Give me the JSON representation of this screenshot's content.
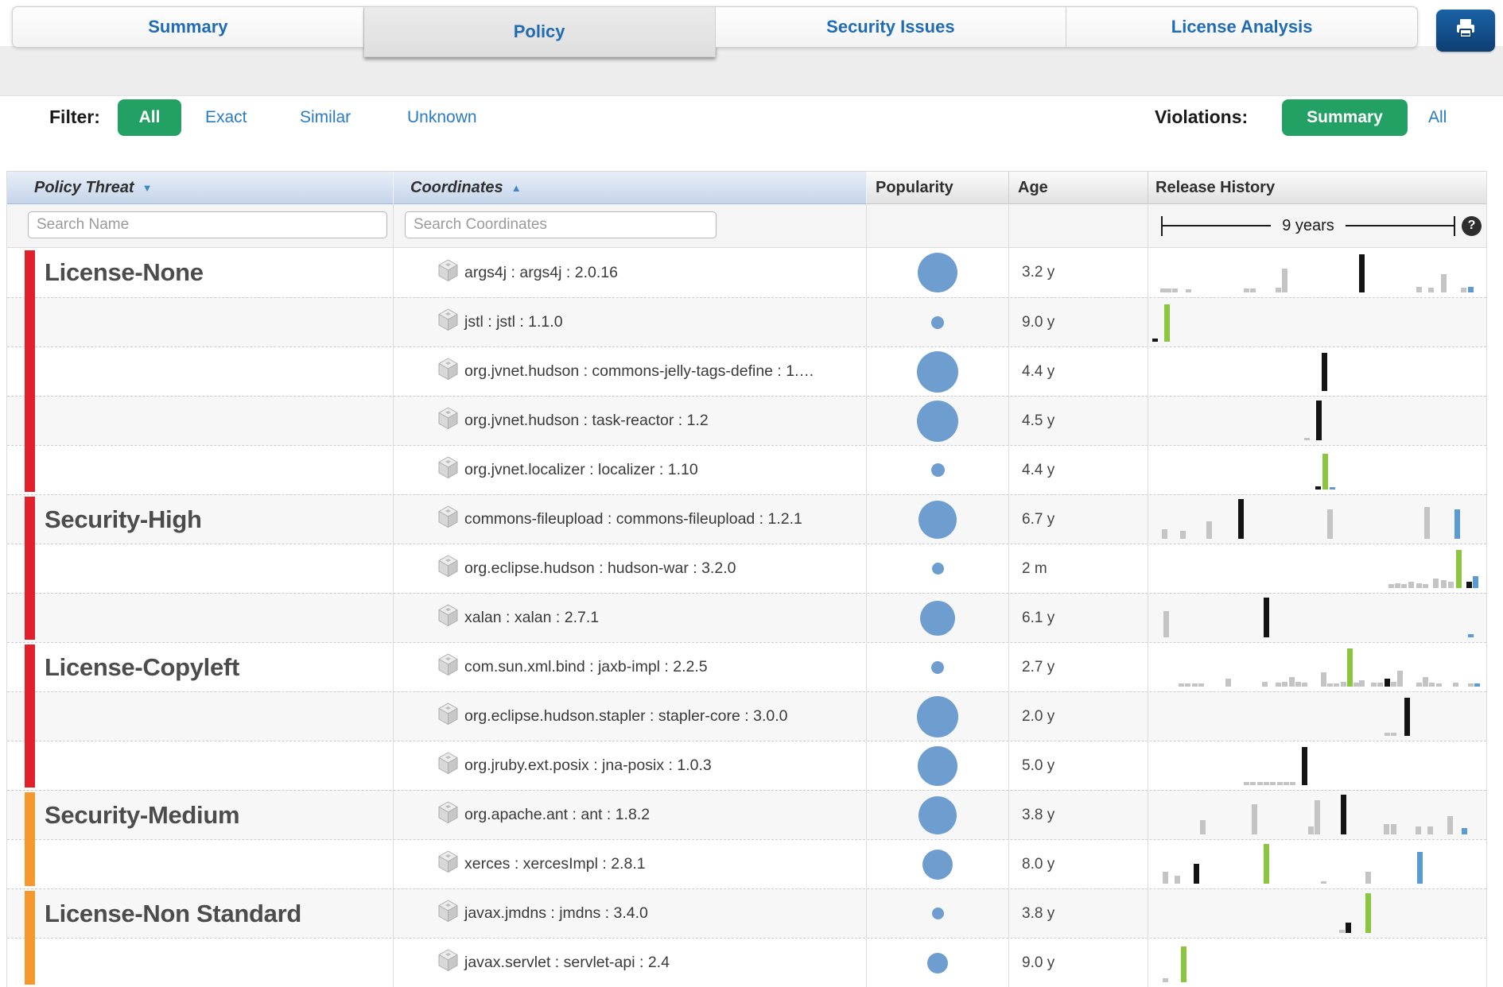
{
  "header": {
    "tabs": [
      {
        "label": "Summary",
        "active": false
      },
      {
        "label": "Policy",
        "active": true
      },
      {
        "label": "Security Issues",
        "active": false
      },
      {
        "label": "License Analysis",
        "active": false
      }
    ]
  },
  "filters": {
    "filter_label": "Filter:",
    "filter_all": "All",
    "filter_exact": "Exact",
    "filter_similar": "Similar",
    "filter_unknown": "Unknown",
    "violations_label": "Violations:",
    "violations_summary": "Summary",
    "violations_all": "All"
  },
  "table": {
    "columns": [
      {
        "label": "Policy Threat",
        "sort": "desc"
      },
      {
        "label": "Coordinates",
        "sort": "asc"
      },
      {
        "label": "Popularity",
        "sort": ""
      },
      {
        "label": "Age",
        "sort": ""
      },
      {
        "label": "Release History",
        "sort": ""
      }
    ],
    "sort_desc_glyph": "▼",
    "sort_asc_glyph": "▲",
    "search_name_placeholder": "Search Name",
    "search_coordinates_placeholder": "Search Coordinates",
    "release_scale_label": "9 years",
    "help_glyph": "?",
    "colors": {
      "threat_red": "#e2202c",
      "threat_orange": "#f5992d",
      "bubble_blue": "#6d9ecf",
      "accent_green": "#23a164",
      "link_blue": "#2b7bbf"
    },
    "bar_colors": {
      "g": "#c4c4c4",
      "k": "#141414",
      "n": "#8cc63e",
      "b": "#5b9bd5"
    },
    "groups": [
      {
        "name": "License-None",
        "threat_color": "#e2202c",
        "rows": [
          {
            "coordinate": "args4j : args4j : 2.0.16",
            "age": "3.2 y",
            "popularity": 50,
            "bars": [
              [
                15,
                5,
                "g"
              ],
              [
                22,
                5,
                "g"
              ],
              [
                30,
                5,
                "g"
              ],
              [
                47,
                4,
                "g"
              ],
              [
                120,
                5,
                "g"
              ],
              [
                128,
                5,
                "g"
              ],
              [
                160,
                6,
                "g"
              ],
              [
                168,
                30,
                "g"
              ],
              [
                265,
                48,
                "k"
              ],
              [
                337,
                7,
                "g"
              ],
              [
                352,
                6,
                "g"
              ],
              [
                368,
                23,
                "g"
              ],
              [
                393,
                6,
                "g"
              ],
              [
                402,
                7,
                "b"
              ]
            ]
          },
          {
            "coordinate": "jstl : jstl : 1.1.0",
            "age": "9.0 y",
            "popularity": 16,
            "bars": [
              [
                5,
                4,
                "k"
              ],
              [
                20,
                47,
                "n"
              ]
            ]
          },
          {
            "coordinate": "org.jvnet.hudson : commons-jelly-tags-define : 1.…",
            "age": "4.4 y",
            "popularity": 52,
            "bars": [
              [
                218,
                48,
                "k"
              ]
            ]
          },
          {
            "coordinate": "org.jvnet.hudson : task-reactor : 1.2",
            "age": "4.5 y",
            "popularity": 52,
            "bars": [
              [
                196,
                3,
                "g"
              ],
              [
                211,
                50,
                "k"
              ]
            ]
          },
          {
            "coordinate": "org.jvnet.localizer : localizer : 1.10",
            "age": "4.4 y",
            "popularity": 17,
            "bars": [
              [
                210,
                4,
                "k"
              ],
              [
                219,
                45,
                "n"
              ],
              [
                228,
                3,
                "b"
              ]
            ]
          }
        ]
      },
      {
        "name": "Security-High",
        "threat_color": "#e2202c",
        "rows": [
          {
            "coordinate": "commons-fileupload : commons-fileupload : 1.2.1",
            "age": "6.7 y",
            "popularity": 48,
            "bars": [
              [
                17,
                12,
                "g"
              ],
              [
                40,
                10,
                "g"
              ],
              [
                73,
                22,
                "g"
              ],
              [
                113,
                50,
                "k"
              ],
              [
                225,
                37,
                "g"
              ],
              [
                347,
                40,
                "g"
              ],
              [
                385,
                37,
                "b"
              ]
            ]
          },
          {
            "coordinate": "org.eclipse.hudson : hudson-war : 3.2.0",
            "age": "2 m",
            "popularity": 15,
            "bars": [
              [
                302,
                5,
                "g"
              ],
              [
                310,
                6,
                "g"
              ],
              [
                318,
                5,
                "g"
              ],
              [
                327,
                8,
                "g"
              ],
              [
                337,
                6,
                "g"
              ],
              [
                345,
                5,
                "g"
              ],
              [
                358,
                12,
                "g"
              ],
              [
                368,
                10,
                "g"
              ],
              [
                377,
                8,
                "g"
              ],
              [
                387,
                48,
                "n"
              ],
              [
                400,
                8,
                "k"
              ],
              [
                408,
                15,
                "b"
              ]
            ]
          },
          {
            "coordinate": "xalan : xalan : 2.7.1",
            "age": "6.1 y",
            "popularity": 44,
            "bars": [
              [
                19,
                33,
                "g"
              ],
              [
                145,
                50,
                "k"
              ],
              [
                402,
                4,
                "b"
              ]
            ]
          }
        ]
      },
      {
        "name": "License-Copyleft",
        "threat_color": "#e2202c",
        "rows": [
          {
            "coordinate": "com.sun.xml.bind : jaxb-impl : 2.2.5",
            "age": "2.7 y",
            "popularity": 16,
            "bars": [
              [
                38,
                4,
                "g"
              ],
              [
                46,
                4,
                "g"
              ],
              [
                55,
                4,
                "g"
              ],
              [
                63,
                4,
                "g"
              ],
              [
                97,
                10,
                "g"
              ],
              [
                143,
                6,
                "g"
              ],
              [
                160,
                5,
                "g"
              ],
              [
                168,
                6,
                "g"
              ],
              [
                177,
                12,
                "g"
              ],
              [
                185,
                6,
                "g"
              ],
              [
                193,
                5,
                "g"
              ],
              [
                217,
                18,
                "g"
              ],
              [
                225,
                4,
                "g"
              ],
              [
                233,
                4,
                "g"
              ],
              [
                242,
                6,
                "g"
              ],
              [
                250,
                48,
                "n"
              ],
              [
                258,
                5,
                "g"
              ],
              [
                265,
                8,
                "g"
              ],
              [
                280,
                5,
                "g"
              ],
              [
                288,
                5,
                "g"
              ],
              [
                297,
                10,
                "k"
              ],
              [
                305,
                6,
                "g"
              ],
              [
                313,
                20,
                "g"
              ],
              [
                337,
                5,
                "g"
              ],
              [
                345,
                12,
                "g"
              ],
              [
                353,
                5,
                "g"
              ],
              [
                362,
                4,
                "g"
              ],
              [
                383,
                5,
                "g"
              ],
              [
                402,
                4,
                "g"
              ],
              [
                410,
                4,
                "b"
              ]
            ]
          },
          {
            "coordinate": "org.eclipse.hudson.stapler : stapler-core : 3.0.0",
            "age": "2.0 y",
            "popularity": 52,
            "bars": [
              [
                297,
                4,
                "g"
              ],
              [
                305,
                4,
                "g"
              ],
              [
                322,
                48,
                "k"
              ]
            ]
          },
          {
            "coordinate": "org.jruby.ext.posix : jna-posix : 1.0.3",
            "age": "5.0 y",
            "popularity": 50,
            "bars": [
              [
                120,
                4,
                "g"
              ],
              [
                128,
                4,
                "g"
              ],
              [
                137,
                4,
                "g"
              ],
              [
                145,
                4,
                "g"
              ],
              [
                153,
                4,
                "g"
              ],
              [
                162,
                4,
                "g"
              ],
              [
                170,
                4,
                "g"
              ],
              [
                178,
                4,
                "g"
              ],
              [
                193,
                48,
                "k"
              ]
            ]
          }
        ]
      },
      {
        "name": "Security-Medium",
        "threat_color": "#f5992d",
        "rows": [
          {
            "coordinate": "org.apache.ant : ant : 1.8.2",
            "age": "3.8 y",
            "popularity": 48,
            "bars": [
              [
                65,
                18,
                "g"
              ],
              [
                130,
                38,
                "g"
              ],
              [
                201,
                10,
                "g"
              ],
              [
                209,
                43,
                "g"
              ],
              [
                242,
                50,
                "k"
              ],
              [
                296,
                13,
                "g"
              ],
              [
                305,
                13,
                "g"
              ],
              [
                336,
                10,
                "g"
              ],
              [
                351,
                10,
                "g"
              ],
              [
                376,
                23,
                "g"
              ],
              [
                394,
                8,
                "b"
              ]
            ]
          },
          {
            "coordinate": "xerces : xercesImpl : 2.8.1",
            "age": "8.0 y",
            "popularity": 38,
            "bars": [
              [
                18,
                15,
                "g"
              ],
              [
                33,
                10,
                "g"
              ],
              [
                57,
                25,
                "k"
              ],
              [
                145,
                50,
                "n"
              ],
              [
                217,
                3,
                "g"
              ],
              [
                273,
                15,
                "g"
              ],
              [
                338,
                40,
                "b"
              ]
            ]
          }
        ]
      },
      {
        "name": "License-Non Standard",
        "threat_color": "#f5992d",
        "rows": [
          {
            "coordinate": "javax.jmdns : jmdns : 3.4.0",
            "age": "3.8 y",
            "popularity": 15,
            "bars": [
              [
                240,
                4,
                "g"
              ],
              [
                248,
                13,
                "k"
              ],
              [
                273,
                50,
                "n"
              ]
            ]
          },
          {
            "coordinate": "javax.servlet : servlet-api : 2.4",
            "age": "9.0 y",
            "popularity": 26,
            "bars": [
              [
                18,
                5,
                "g"
              ],
              [
                41,
                45,
                "n"
              ]
            ]
          }
        ]
      }
    ]
  }
}
